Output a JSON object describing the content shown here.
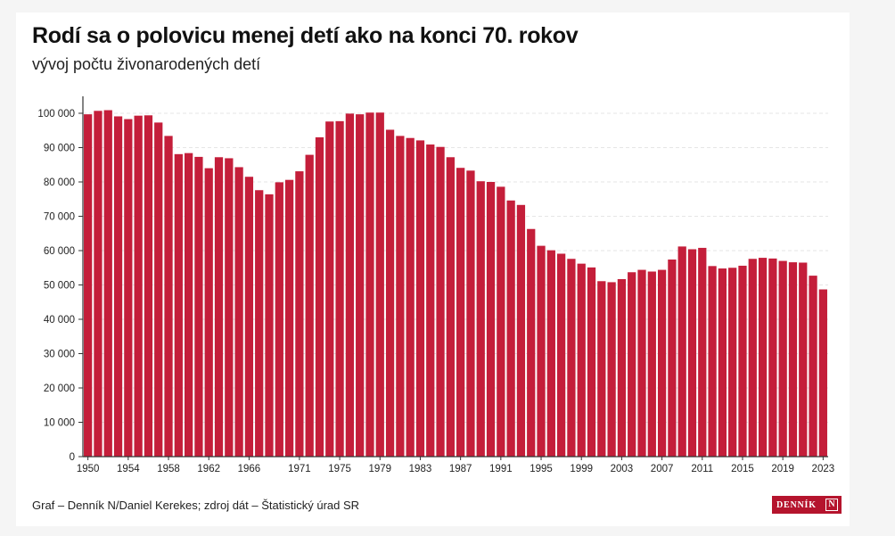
{
  "header": {
    "title": "Rodí sa o polovicu menej detí ako na konci 70. rokov",
    "subtitle": "vývoj počtu živonarodených detí"
  },
  "footer": {
    "credit": "Graf – Denník N/Daniel Kerekes; zdroj dát – Štatistický úrad SR"
  },
  "logo": {
    "text": "DENNÍK",
    "mark": "N",
    "icon": "dennik-n-logo"
  },
  "colors": {
    "bar": "#c41e3a",
    "background": "#ffffff",
    "grid": "#e6e6e6",
    "axis": "#333333"
  },
  "chart_data": {
    "type": "bar",
    "title": "Rodí sa o polovicu menej detí ako na konci 70. rokov",
    "subtitle": "vývoj počtu živonarodených detí",
    "xlabel": "",
    "ylabel": "",
    "ylim": [
      0,
      100000
    ],
    "grid": "horizontal dashed",
    "yticks": [
      0,
      10000,
      20000,
      30000,
      40000,
      50000,
      60000,
      70000,
      80000,
      90000,
      100000
    ],
    "ytick_labels": [
      "0",
      "10 000",
      "20 000",
      "30 000",
      "40 000",
      "50 000",
      "60 000",
      "70 000",
      "80 000",
      "90 000",
      "100 000"
    ],
    "xtick_labels": [
      "1950",
      "1954",
      "1958",
      "1962",
      "1966",
      "1971",
      "1975",
      "1979",
      "1983",
      "1987",
      "1991",
      "1995",
      "1999",
      "2003",
      "2007",
      "2011",
      "2015",
      "2019",
      "2023"
    ],
    "categories": [
      1950,
      1951,
      1952,
      1953,
      1954,
      1955,
      1956,
      1957,
      1958,
      1959,
      1960,
      1961,
      1962,
      1963,
      1964,
      1965,
      1966,
      1967,
      1968,
      1969,
      1970,
      1971,
      1972,
      1973,
      1974,
      1975,
      1976,
      1977,
      1978,
      1979,
      1980,
      1981,
      1982,
      1983,
      1984,
      1985,
      1986,
      1987,
      1988,
      1989,
      1990,
      1991,
      1992,
      1993,
      1994,
      1995,
      1996,
      1997,
      1998,
      1999,
      2000,
      2001,
      2002,
      2003,
      2004,
      2005,
      2006,
      2007,
      2008,
      2009,
      2010,
      2011,
      2012,
      2013,
      2014,
      2015,
      2016,
      2017,
      2018,
      2019,
      2020,
      2021,
      2022,
      2023
    ],
    "values": [
      99700,
      100700,
      100900,
      99100,
      98300,
      99300,
      99400,
      97300,
      93400,
      88100,
      88400,
      87300,
      84000,
      87200,
      86900,
      84300,
      81500,
      77600,
      76400,
      79900,
      80600,
      83100,
      87900,
      93000,
      97600,
      97700,
      99900,
      99700,
      100200,
      100200,
      95200,
      93400,
      92800,
      92100,
      90900,
      90200,
      87200,
      84100,
      83300,
      80200,
      80000,
      78600,
      74600,
      73300,
      66300,
      61400,
      60100,
      59100,
      57600,
      56200,
      55100,
      51100,
      50800,
      51700,
      53700,
      54400,
      53900,
      54400,
      57400,
      61200,
      60400,
      60800,
      55500,
      54800,
      55000,
      55600,
      57600,
      57900,
      57700,
      57000,
      56600,
      56500,
      52700,
      48700
    ]
  }
}
